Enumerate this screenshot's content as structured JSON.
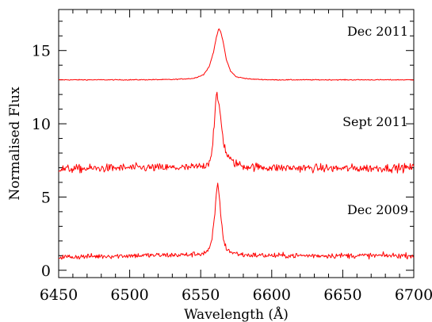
{
  "chart_data": {
    "type": "line",
    "title": "",
    "xlabel": "Wavelength (Å)",
    "ylabel": "Normalised Flux",
    "xlim": [
      6450,
      6700
    ],
    "ylim": [
      -0.5,
      17.8
    ],
    "x_ticks": [
      6450,
      6500,
      6550,
      6600,
      6650,
      6700
    ],
    "x_tick_labels": [
      "6450",
      "6500",
      "6550",
      "6600",
      "6650",
      "6700"
    ],
    "y_ticks": [
      0,
      5,
      10,
      15
    ],
    "y_tick_labels": [
      "0",
      "5",
      "10",
      "15"
    ],
    "grid": false,
    "line_color": "#ff0000",
    "series": [
      {
        "name": "Dec 2011",
        "x": [
          6450,
          6500,
          6530,
          6545,
          6552,
          6556,
          6559,
          6561,
          6562.8,
          6564,
          6566,
          6568,
          6571,
          6575,
          6585,
          6600,
          6650,
          6700
        ],
        "values": [
          13.0,
          13.0,
          13.02,
          13.1,
          13.35,
          13.9,
          14.9,
          15.9,
          16.5,
          16.3,
          15.5,
          14.4,
          13.6,
          13.2,
          13.05,
          13.0,
          13.0,
          13.0
        ],
        "noise": 0.03
      },
      {
        "name": "Sept 2011",
        "x": [
          6450,
          6500,
          6540,
          6552,
          6556,
          6558,
          6560,
          6561,
          6562,
          6563,
          6564,
          6565,
          6566,
          6568,
          6572,
          6580,
          6600,
          6650,
          6700
        ],
        "values": [
          6.9,
          7.0,
          7.0,
          7.1,
          7.4,
          8.2,
          10.6,
          11.9,
          11.7,
          11.2,
          10.5,
          9.6,
          8.8,
          8.0,
          7.4,
          7.1,
          7.0,
          6.95,
          7.0
        ],
        "noise": 0.28
      },
      {
        "name": "Dec 2009",
        "x": [
          6450,
          6500,
          6540,
          6552,
          6556,
          6558,
          6560,
          6561,
          6562,
          6563,
          6564,
          6565,
          6566,
          6568,
          6572,
          6580,
          6600,
          6650,
          6700
        ],
        "values": [
          0.9,
          1.0,
          1.05,
          1.15,
          1.4,
          2.1,
          3.9,
          5.3,
          5.8,
          5.2,
          4.0,
          2.9,
          2.1,
          1.5,
          1.2,
          1.05,
          1.0,
          1.0,
          1.0
        ],
        "noise": 0.18
      }
    ]
  }
}
